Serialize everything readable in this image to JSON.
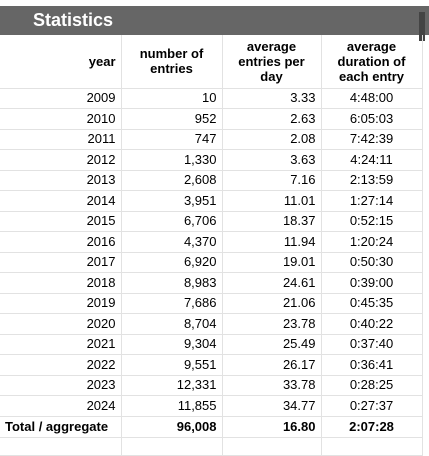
{
  "title": "Statistics",
  "headers": {
    "year": "year",
    "entries": "number of entries",
    "avg_per_day": "average entries per day",
    "avg_duration": "average duration of each entry"
  },
  "rows": [
    {
      "year": "2009",
      "entries": "10",
      "per_day": "3.33",
      "duration": "4:48:00"
    },
    {
      "year": "2010",
      "entries": "952",
      "per_day": "2.63",
      "duration": "6:05:03"
    },
    {
      "year": "2011",
      "entries": "747",
      "per_day": "2.08",
      "duration": "7:42:39"
    },
    {
      "year": "2012",
      "entries": "1,330",
      "per_day": "3.63",
      "duration": "4:24:11"
    },
    {
      "year": "2013",
      "entries": "2,608",
      "per_day": "7.16",
      "duration": "2:13:59"
    },
    {
      "year": "2014",
      "entries": "3,951",
      "per_day": "11.01",
      "duration": "1:27:14"
    },
    {
      "year": "2015",
      "entries": "6,706",
      "per_day": "18.37",
      "duration": "0:52:15"
    },
    {
      "year": "2016",
      "entries": "4,370",
      "per_day": "11.94",
      "duration": "1:20:24"
    },
    {
      "year": "2017",
      "entries": "6,920",
      "per_day": "19.01",
      "duration": "0:50:30"
    },
    {
      "year": "2018",
      "entries": "8,983",
      "per_day": "24.61",
      "duration": "0:39:00"
    },
    {
      "year": "2019",
      "entries": "7,686",
      "per_day": "21.06",
      "duration": "0:45:35"
    },
    {
      "year": "2020",
      "entries": "8,704",
      "per_day": "23.78",
      "duration": "0:40:22"
    },
    {
      "year": "2021",
      "entries": "9,304",
      "per_day": "25.49",
      "duration": "0:37:40"
    },
    {
      "year": "2022",
      "entries": "9,551",
      "per_day": "26.17",
      "duration": "0:36:41"
    },
    {
      "year": "2023",
      "entries": "12,331",
      "per_day": "33.78",
      "duration": "0:28:25"
    },
    {
      "year": "2024",
      "entries": "11,855",
      "per_day": "34.77",
      "duration": "0:27:37"
    }
  ],
  "total": {
    "label": "Total / aggregate",
    "entries": "96,008",
    "per_day": "16.80",
    "duration": "2:07:28"
  },
  "colors": {
    "title_bar": "#666666",
    "grid": "#e2e2e2"
  }
}
